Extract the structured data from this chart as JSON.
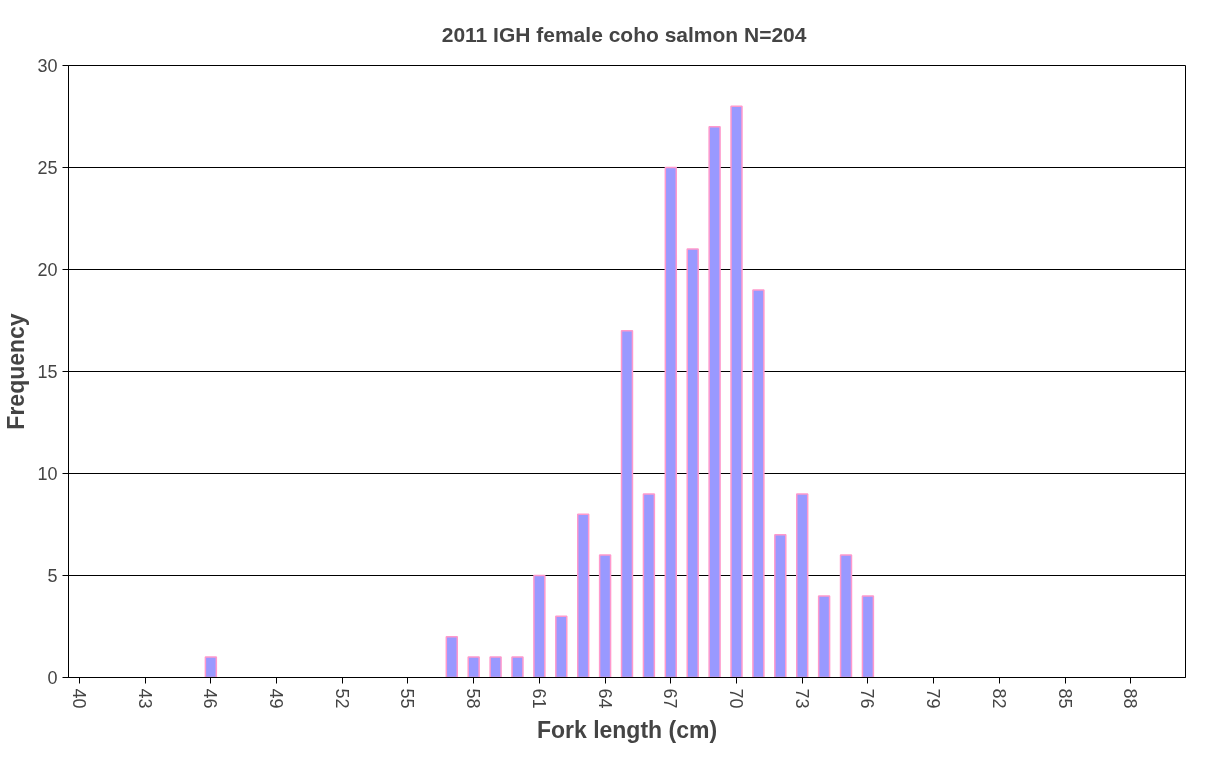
{
  "chart_data": {
    "type": "bar",
    "title": "2011 IGH female coho salmon  N=204",
    "xlabel": "Fork length (cm)",
    "ylabel": "Frequency",
    "x": [
      46,
      57,
      58,
      59,
      60,
      61,
      62,
      63,
      64,
      65,
      66,
      67,
      68,
      69,
      70,
      71,
      72,
      73,
      74,
      75,
      76
    ],
    "series": [
      {
        "color": "#9999ff",
        "values": [
          1,
          2,
          1,
          1,
          1,
          5,
          3,
          8,
          6,
          17,
          9,
          25,
          21,
          27,
          28,
          19,
          7,
          9,
          4,
          6,
          4
        ]
      }
    ],
    "xlim": [
      39.5,
      90.5
    ],
    "xticks": [
      40,
      43,
      46,
      49,
      52,
      55,
      58,
      61,
      64,
      67,
      70,
      73,
      76,
      79,
      82,
      85,
      88
    ],
    "ylim": [
      0,
      30
    ],
    "yticks": [
      0,
      5,
      10,
      15,
      20,
      25,
      30
    ],
    "grid": "y"
  }
}
